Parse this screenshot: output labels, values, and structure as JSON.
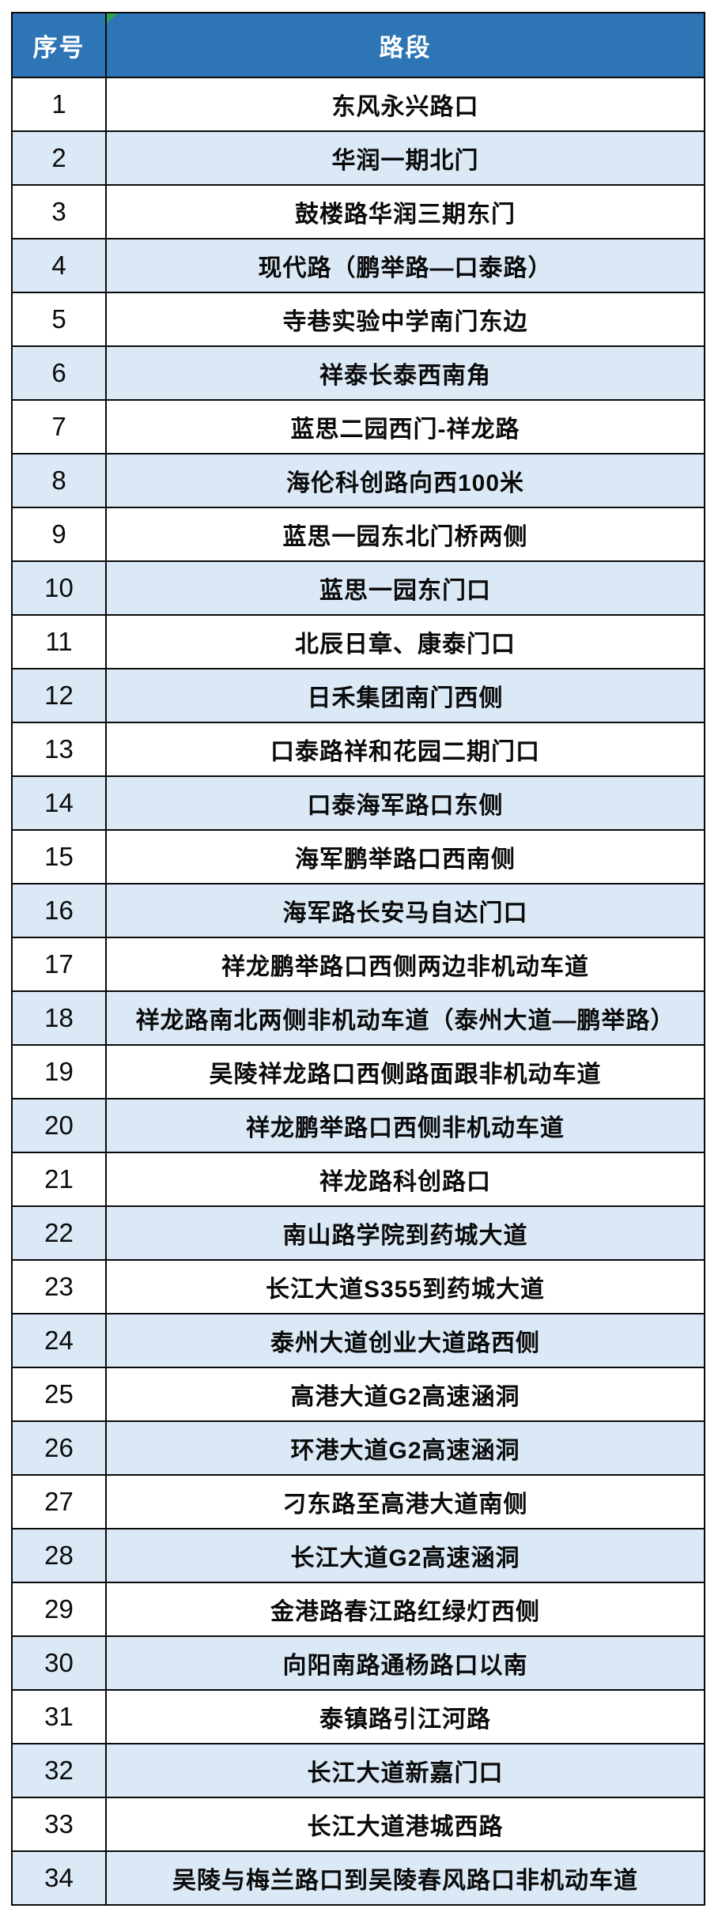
{
  "table": {
    "headers": {
      "index": "序号",
      "road": "路段"
    },
    "rows": [
      {
        "no": "1",
        "road": "东风永兴路口"
      },
      {
        "no": "2",
        "road": "华润一期北门"
      },
      {
        "no": "3",
        "road": "鼓楼路华润三期东门"
      },
      {
        "no": "4",
        "road": "现代路（鹏举路—口泰路）"
      },
      {
        "no": "5",
        "road": "寺巷实验中学南门东边"
      },
      {
        "no": "6",
        "road": "祥泰长泰西南角"
      },
      {
        "no": "7",
        "road": "蓝思二园西门-祥龙路"
      },
      {
        "no": "8",
        "road": "海伦科创路向西100米"
      },
      {
        "no": "9",
        "road": "蓝思一园东北门桥两侧"
      },
      {
        "no": "10",
        "road": "蓝思一园东门口"
      },
      {
        "no": "11",
        "road": "北辰日章、康泰门口"
      },
      {
        "no": "12",
        "road": "日禾集团南门西侧"
      },
      {
        "no": "13",
        "road": "口泰路祥和花园二期门口"
      },
      {
        "no": "14",
        "road": "口泰海军路口东侧"
      },
      {
        "no": "15",
        "road": "海军鹏举路口西南侧"
      },
      {
        "no": "16",
        "road": "海军路长安马自达门口"
      },
      {
        "no": "17",
        "road": "祥龙鹏举路口西侧两边非机动车道"
      },
      {
        "no": "18",
        "road": "祥龙路南北两侧非机动车道（泰州大道—鹏举路）"
      },
      {
        "no": "19",
        "road": "吴陵祥龙路口西侧路面跟非机动车道"
      },
      {
        "no": "20",
        "road": "祥龙鹏举路口西侧非机动车道"
      },
      {
        "no": "21",
        "road": "祥龙路科创路口"
      },
      {
        "no": "22",
        "road": "南山路学院到药城大道"
      },
      {
        "no": "23",
        "road": "长江大道S355到药城大道"
      },
      {
        "no": "24",
        "road": "泰州大道创业大道路西侧"
      },
      {
        "no": "25",
        "road": "高港大道G2高速涵洞"
      },
      {
        "no": "26",
        "road": "环港大道G2高速涵洞"
      },
      {
        "no": "27",
        "road": "刁东路至高港大道南侧"
      },
      {
        "no": "28",
        "road": "长江大道G2高速涵洞"
      },
      {
        "no": "29",
        "road": "金港路春江路红绿灯西侧"
      },
      {
        "no": "30",
        "road": "向阳南路通杨路口以南"
      },
      {
        "no": "31",
        "road": "泰镇路引江河路"
      },
      {
        "no": "32",
        "road": "长江大道新嘉门口"
      },
      {
        "no": "33",
        "road": "长江大道港城西路"
      },
      {
        "no": "34",
        "road": "吴陵与梅兰路口到吴陵春风路口非机动车道"
      }
    ]
  },
  "colors": {
    "header_bg": "#2E75B6",
    "header_text": "#FFFFFF",
    "alt_row_bg": "#DBE9F6",
    "row_bg": "#FFFFFF",
    "border": "#0A0A0A",
    "corner_marker_green": "#2EA350",
    "cell_text": "#0B0B0B"
  }
}
